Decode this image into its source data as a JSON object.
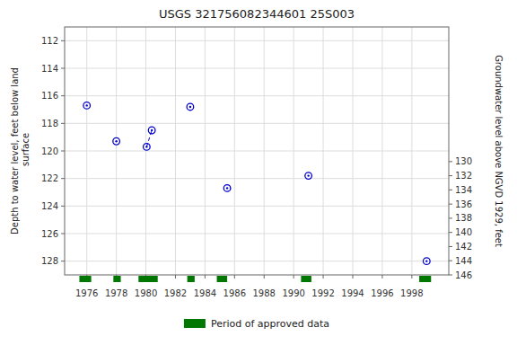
{
  "chart_data": {
    "type": "scatter",
    "title": "USGS 321756082344601 25S003",
    "ylabel": "Depth to water level, feet below land\n surface",
    "y2label": "Groundwater level above NGVD 1929, feet",
    "xlim": [
      1974.5,
      2000.5
    ],
    "xticks": [
      1976,
      1978,
      1980,
      1982,
      1984,
      1986,
      1988,
      1990,
      1992,
      1994,
      1996,
      1998
    ],
    "ylim": [
      129,
      111
    ],
    "yticks": [
      112,
      114,
      116,
      118,
      120,
      122,
      124,
      126,
      128
    ],
    "y2lim": [
      146,
      111
    ],
    "y2ticks": [
      146,
      144,
      142,
      140,
      138,
      136,
      134,
      132,
      130
    ],
    "grid": true,
    "legend": "bottom",
    "series": [
      {
        "type": "scatter",
        "marker": "circle",
        "color": "#0000cc",
        "x": [
          1976.0,
          1978.0,
          1980.05,
          1980.4,
          1983.0,
          1985.5,
          1991.0,
          1999.0
        ],
        "values": [
          116.7,
          119.3,
          119.7,
          118.5,
          116.8,
          122.7,
          121.8,
          128.0
        ]
      },
      {
        "type": "line",
        "line_style": "dashed",
        "color": "#0000cc",
        "x": [
          1980.05,
          1980.4
        ],
        "values": [
          119.7,
          118.5
        ]
      }
    ],
    "approved_periods": {
      "name": "Period of approved data",
      "color": "#007700",
      "x_ranges": [
        [
          1975.5,
          1976.3
        ],
        [
          1977.8,
          1978.3
        ],
        [
          1979.5,
          1980.8
        ],
        [
          1982.8,
          1983.3
        ],
        [
          1984.8,
          1985.5
        ],
        [
          1990.5,
          1991.2
        ],
        [
          1998.5,
          1999.3
        ]
      ]
    }
  }
}
